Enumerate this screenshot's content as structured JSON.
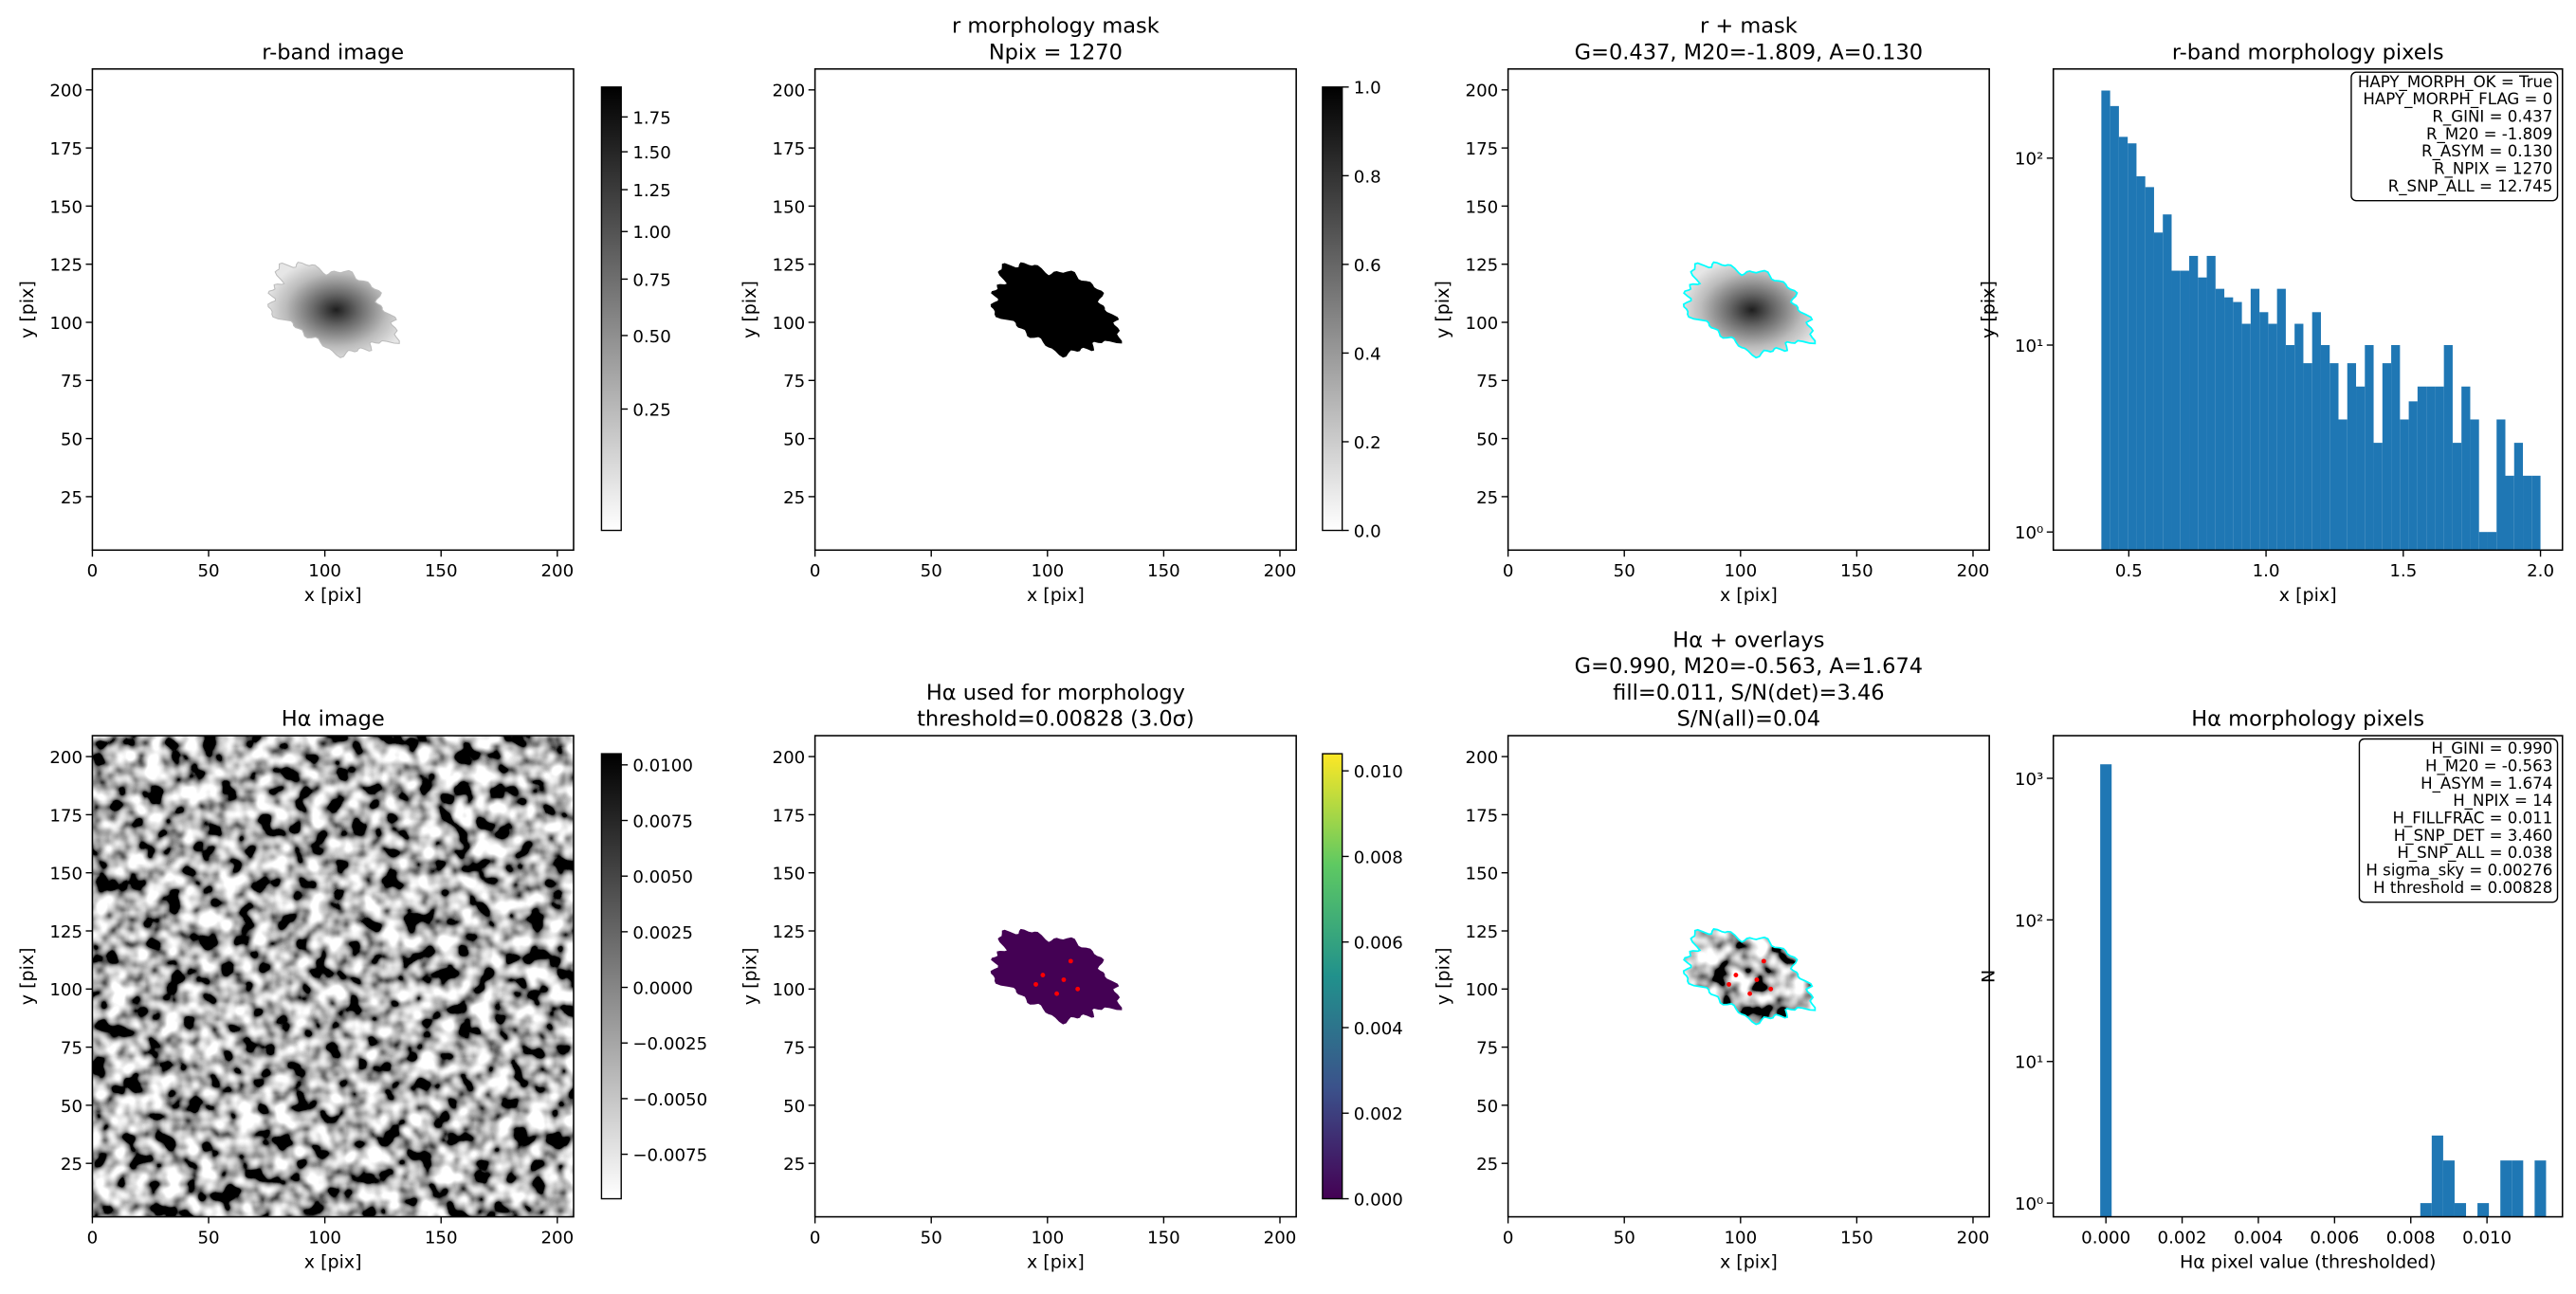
{
  "chart_data": [
    {
      "type": "image",
      "title": [
        "r-band image"
      ],
      "xlabel": "x [pix]",
      "ylabel": "y [pix]",
      "xlim": [
        0,
        207
      ],
      "ylim": [
        2,
        209
      ],
      "xticks": [
        0,
        50,
        100,
        150,
        200
      ],
      "yticks": [
        25,
        50,
        75,
        100,
        125,
        150,
        175,
        200
      ],
      "cmap": "gray_r",
      "colorbar": {
        "lim": [
          0.025,
          1.98
        ],
        "scale": "sqrt",
        "ticks": [
          {
            "value": 0.25,
            "label": "0.25"
          },
          {
            "value": 0.5,
            "label": "0.50"
          },
          {
            "value": 0.75,
            "label": "0.75"
          },
          {
            "value": 1.0,
            "label": "1.00"
          },
          {
            "value": 1.25,
            "label": "1.25"
          },
          {
            "value": 1.5,
            "label": "1.50"
          },
          {
            "value": 1.75,
            "label": "1.75"
          }
        ]
      }
    },
    {
      "type": "image",
      "title": [
        "r morphology mask",
        "Npix = 1270"
      ],
      "xlabel": "x [pix]",
      "ylabel": "y [pix]",
      "xlim": [
        0,
        207
      ],
      "ylim": [
        2,
        209
      ],
      "xticks": [
        0,
        50,
        100,
        150,
        200
      ],
      "yticks": [
        25,
        50,
        75,
        100,
        125,
        150,
        175,
        200
      ],
      "cmap": "gray_r",
      "colorbar": {
        "lim": [
          0,
          1
        ],
        "scale": "linear",
        "ticks": [
          {
            "value": 0,
            "label": "0.0"
          },
          {
            "value": 0.2,
            "label": "0.2"
          },
          {
            "value": 0.4,
            "label": "0.4"
          },
          {
            "value": 0.6,
            "label": "0.6"
          },
          {
            "value": 0.8,
            "label": "0.8"
          },
          {
            "value": 1,
            "label": "1.0"
          }
        ]
      }
    },
    {
      "type": "image",
      "title": [
        "r + mask",
        "G=0.437, M20=-1.809, A=0.130"
      ],
      "xlabel": "x [pix]",
      "ylabel": "y [pix]",
      "xlim": [
        0,
        207
      ],
      "ylim": [
        2,
        209
      ],
      "xticks": [
        0,
        50,
        100,
        150,
        200
      ],
      "yticks": [
        25,
        50,
        75,
        100,
        125,
        150,
        175,
        200
      ],
      "cmap": "gray_r",
      "contour_color": "#00ffff"
    },
    {
      "type": "histogram",
      "title": [
        "r-band morphology pixels"
      ],
      "xlabel": "x [pix]",
      "ylabel": "y [pix]",
      "color": "#1f77b4",
      "log_y": true,
      "bins": [
        0.4,
        0.432,
        0.464,
        0.496,
        0.528,
        0.56,
        0.592,
        0.624,
        0.656,
        0.688,
        0.72,
        0.752,
        0.784,
        0.816,
        0.848,
        0.88,
        0.912,
        0.944,
        0.976,
        1.008,
        1.04,
        1.072,
        1.104,
        1.136,
        1.168,
        1.2,
        1.232,
        1.264,
        1.296,
        1.328,
        1.36,
        1.392,
        1.424,
        1.456,
        1.488,
        1.52,
        1.552,
        1.584,
        1.616,
        1.648,
        1.68,
        1.712,
        1.744,
        1.776,
        1.808,
        1.84,
        1.872,
        1.904,
        1.936,
        1.968,
        2.0
      ],
      "counts": [
        230,
        190,
        130,
        120,
        80,
        70,
        40,
        50,
        25,
        25,
        30,
        23,
        30,
        20,
        18,
        17,
        13,
        20,
        15,
        13,
        20,
        10,
        13,
        8,
        15,
        10,
        8,
        4,
        8,
        6,
        10,
        3,
        8,
        10,
        4,
        5,
        6,
        6,
        6,
        10,
        3,
        6,
        4,
        1,
        1,
        4,
        2,
        3,
        2,
        2
      ],
      "xlim": [
        0.225,
        2.08
      ],
      "xticks": [
        {
          "value": 0.5,
          "label": "0.5"
        },
        {
          "value": 1.0,
          "label": "1.0"
        },
        {
          "value": 1.5,
          "label": "1.5"
        },
        {
          "value": 2.0,
          "label": "2.0"
        }
      ],
      "ylim": [
        0.8,
        300
      ],
      "yticks": [
        {
          "value": 1,
          "label": "10⁰"
        },
        {
          "value": 10,
          "label": "10¹"
        },
        {
          "value": 100,
          "label": "10²"
        }
      ],
      "annotation": [
        "HAPY_MORPH_OK = True",
        "HAPY_MORPH_FLAG = 0",
        "R_GINI = 0.437",
        "R_M20 = -1.809",
        "R_ASYM = 0.130",
        "R_NPIX = 1270",
        "R_SNP_ALL = 12.745"
      ]
    },
    {
      "type": "image",
      "title": [
        "Hα image"
      ],
      "xlabel": "x [pix]",
      "ylabel": "y [pix]",
      "xlim": [
        0,
        207
      ],
      "ylim": [
        2,
        209
      ],
      "xticks": [
        0,
        50,
        100,
        150,
        200
      ],
      "yticks": [
        25,
        50,
        75,
        100,
        125,
        150,
        175,
        200
      ],
      "cmap": "gray_r",
      "colorbar": {
        "lim": [
          -0.0095,
          0.0105
        ],
        "scale": "linear",
        "ticks": [
          {
            "value": 0.01,
            "label": "0.0100"
          },
          {
            "value": 0.0075,
            "label": "0.0075"
          },
          {
            "value": 0.005,
            "label": "0.0050"
          },
          {
            "value": 0.0025,
            "label": "0.0025"
          },
          {
            "value": 0,
            "label": "0.0000"
          },
          {
            "value": -0.0025,
            "label": "−0.0025"
          },
          {
            "value": -0.005,
            "label": "−0.0050"
          },
          {
            "value": -0.0075,
            "label": "−0.0075"
          }
        ]
      }
    },
    {
      "type": "image",
      "title": [
        "Hα used for morphology",
        "threshold=0.00828 (3.0σ)"
      ],
      "xlabel": "x [pix]",
      "ylabel": "y [pix]",
      "xlim": [
        0,
        207
      ],
      "ylim": [
        2,
        209
      ],
      "xticks": [
        0,
        50,
        100,
        150,
        200
      ],
      "yticks": [
        25,
        50,
        75,
        100,
        125,
        150,
        175,
        200
      ],
      "cmap": "viridis",
      "marker_color": "#ff0000",
      "colorbar": {
        "lim": [
          0,
          0.0104
        ],
        "scale": "linear",
        "ticks": [
          {
            "value": 0,
            "label": "0.000"
          },
          {
            "value": 0.002,
            "label": "0.002"
          },
          {
            "value": 0.004,
            "label": "0.004"
          },
          {
            "value": 0.006,
            "label": "0.006"
          },
          {
            "value": 0.008,
            "label": "0.008"
          },
          {
            "value": 0.01,
            "label": "0.010"
          }
        ]
      }
    },
    {
      "type": "image",
      "title": [
        "Hα + overlays",
        "G=0.990, M20=-0.563, A=1.674",
        "fill=0.011, S/N(det)=3.46",
        "S/N(all)=0.04"
      ],
      "xlabel": "x [pix]",
      "ylabel": "y [pix]",
      "xlim": [
        0,
        207
      ],
      "ylim": [
        2,
        209
      ],
      "xticks": [
        0,
        50,
        100,
        150,
        200
      ],
      "yticks": [
        25,
        50,
        75,
        100,
        125,
        150,
        175,
        200
      ],
      "cmap": "gray_r",
      "contour_color": "#00ffff",
      "marker_color": "#ff0000"
    },
    {
      "type": "histogram",
      "title": [
        "Hα morphology pixels"
      ],
      "xlabel": "Hα pixel value (thresholded)",
      "ylabel": "N",
      "color": "#1f77b4",
      "log_y": true,
      "bins": [
        -0.00015,
        0.00015,
        0.00045,
        0.00075,
        0.00105,
        0.00135,
        0.00165,
        0.00195,
        0.00225,
        0.00255,
        0.00285,
        0.00315,
        0.00345,
        0.00375,
        0.00405,
        0.00435,
        0.00465,
        0.00495,
        0.00525,
        0.00555,
        0.00585,
        0.00615,
        0.00645,
        0.00675,
        0.00705,
        0.00735,
        0.00765,
        0.00795,
        0.00825,
        0.00855,
        0.00885,
        0.00915,
        0.00945,
        0.00975,
        0.01005,
        0.01035,
        0.01065,
        0.01095,
        0.01125,
        0.01155,
        0.01185
      ],
      "counts": [
        1256,
        0,
        0,
        0,
        0,
        0,
        0,
        0,
        0,
        0,
        0,
        0,
        0,
        0,
        0,
        0,
        0,
        0,
        0,
        0,
        0,
        0,
        0,
        0,
        0,
        0,
        0,
        0,
        1,
        3,
        2,
        1,
        0,
        1,
        0,
        2,
        2,
        0,
        2,
        0
      ],
      "xlim": [
        -0.00138,
        0.01198
      ],
      "xticks": [
        {
          "value": 0,
          "label": "0.000"
        },
        {
          "value": 0.002,
          "label": "0.002"
        },
        {
          "value": 0.004,
          "label": "0.004"
        },
        {
          "value": 0.006,
          "label": "0.006"
        },
        {
          "value": 0.008,
          "label": "0.008"
        },
        {
          "value": 0.01,
          "label": "0.010"
        }
      ],
      "ylim": [
        0.8,
        2000
      ],
      "yticks": [
        {
          "value": 1,
          "label": "10⁰"
        },
        {
          "value": 10,
          "label": "10¹"
        },
        {
          "value": 100,
          "label": "10²"
        },
        {
          "value": 1000,
          "label": "10³"
        }
      ],
      "annotation": [
        "H_GINI = 0.990",
        "H_M20 = -0.563",
        "H_ASYM = 1.674",
        "H_NPIX = 14",
        "H_FILLFRAC = 0.011",
        "H_SNP_DET = 3.460",
        "H_SNP_ALL = 0.038",
        "H sigma_sky = 0.00276",
        "H threshold = 0.00828"
      ]
    }
  ]
}
